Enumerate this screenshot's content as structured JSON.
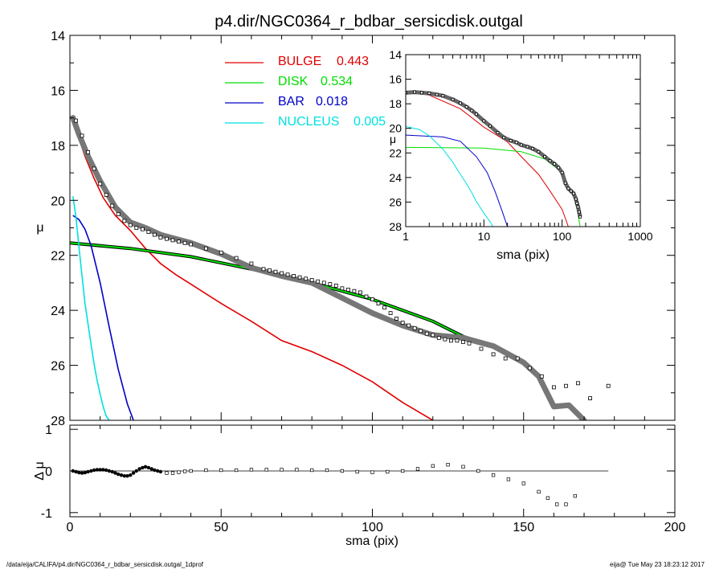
{
  "chart_data": [
    {
      "type": "line",
      "title": "p4.dir/NGC0364_r_bdbar_sersicdisk.outgal",
      "ylabel": "μ",
      "xlim": [
        0,
        200
      ],
      "ylim": [
        28,
        14
      ],
      "y_ticks": [
        "14",
        "16",
        "18",
        "20",
        "22",
        "24",
        "26",
        "28"
      ],
      "legend": [
        {
          "label": "BULGE",
          "value": "0.443",
          "color": "#e00000"
        },
        {
          "label": "DISK",
          "value": "0.534",
          "color": "#00dd00"
        },
        {
          "label": "BAR",
          "value": "0.018",
          "color": "#0000c8"
        },
        {
          "label": "NUCLEUS",
          "value": "0.005",
          "color": "#00e0e0"
        }
      ],
      "series": [
        {
          "name": "BULGE",
          "color": "#e00000",
          "x": [
            1,
            3,
            5,
            8,
            11,
            15,
            20,
            25,
            30,
            35,
            40,
            50,
            60,
            70,
            80,
            90,
            100,
            110,
            120
          ],
          "y": [
            17.0,
            17.75,
            18.4,
            19.2,
            19.9,
            20.55,
            21.1,
            21.75,
            22.3,
            22.7,
            23.05,
            23.75,
            24.4,
            25.1,
            25.5,
            26.0,
            26.6,
            27.35,
            28.0
          ]
        },
        {
          "name": "DISK",
          "color": "#00dd00",
          "x": [
            0,
            20,
            40,
            60,
            80,
            100,
            120,
            130,
            140,
            150,
            155,
            160,
            165,
            170
          ],
          "y": [
            21.55,
            21.75,
            22.05,
            22.5,
            23.0,
            23.6,
            24.4,
            24.95,
            25.3,
            25.9,
            26.4,
            27.5,
            27.45,
            28.0
          ]
        },
        {
          "name": "BAR",
          "color": "#0000c8",
          "x": [
            1,
            3,
            5,
            7,
            10,
            13,
            16,
            19,
            21
          ],
          "y": [
            20.55,
            20.7,
            21.05,
            21.65,
            23.0,
            24.6,
            26.15,
            27.4,
            28.0
          ]
        },
        {
          "name": "NUCLEUS",
          "color": "#00e0e0",
          "x": [
            1,
            2,
            3,
            4,
            5,
            6,
            7,
            8,
            9,
            10,
            11,
            12,
            13
          ],
          "y": [
            19.85,
            20.6,
            21.7,
            22.75,
            23.75,
            24.5,
            25.25,
            25.95,
            26.55,
            27.05,
            27.5,
            27.85,
            28.0
          ]
        },
        {
          "name": "MODEL",
          "color": "#888888",
          "x": [
            1,
            3,
            6,
            10,
            15,
            20,
            25,
            30,
            35,
            40,
            50,
            60,
            70,
            80,
            90,
            100,
            110,
            120,
            130,
            140,
            150,
            155,
            160,
            165,
            170
          ],
          "y": [
            17.0,
            17.6,
            18.4,
            19.3,
            20.25,
            20.8,
            21.0,
            21.25,
            21.4,
            21.55,
            21.95,
            22.45,
            22.75,
            23.0,
            23.55,
            24.1,
            24.55,
            24.9,
            25.0,
            25.3,
            25.9,
            26.4,
            27.5,
            27.45,
            28.0
          ]
        }
      ],
      "observed": {
        "x": [
          2,
          4,
          6,
          8,
          10,
          12,
          14,
          16,
          18,
          20,
          22,
          24,
          26,
          28,
          30,
          32,
          34,
          36,
          38,
          40,
          45,
          50,
          55,
          60,
          64,
          66,
          68,
          70,
          72,
          74,
          76,
          78,
          80,
          82,
          84,
          86,
          88,
          90,
          92,
          94,
          96,
          98,
          100,
          102,
          104,
          106,
          108,
          110,
          112,
          114,
          116,
          118,
          120,
          122,
          124,
          126,
          128,
          130,
          132,
          136,
          140,
          144,
          148,
          152,
          156,
          160,
          164,
          168,
          172,
          178
        ],
        "y": [
          17.1,
          17.65,
          18.25,
          18.85,
          19.4,
          19.8,
          20.2,
          20.5,
          20.75,
          20.9,
          21.0,
          21.05,
          21.15,
          21.25,
          21.35,
          21.4,
          21.45,
          21.5,
          21.55,
          21.6,
          21.75,
          21.9,
          22.1,
          22.3,
          22.5,
          22.55,
          22.6,
          22.65,
          22.7,
          22.75,
          22.8,
          22.85,
          22.9,
          22.95,
          23.0,
          23.05,
          23.1,
          23.2,
          23.25,
          23.3,
          23.35,
          23.5,
          23.6,
          23.75,
          23.9,
          24.1,
          24.3,
          24.45,
          24.55,
          24.65,
          24.75,
          24.85,
          24.9,
          25.0,
          25.05,
          25.1,
          25.1,
          25.15,
          25.2,
          25.4,
          25.6,
          25.75,
          25.75,
          26.1,
          26.4,
          26.8,
          26.75,
          26.65,
          27.2,
          26.75
        ]
      }
    },
    {
      "type": "line",
      "ylabel": "μ",
      "xlabel": "sma (pix)",
      "xscale": "log",
      "xlim": [
        1,
        1000
      ],
      "ylim": [
        28,
        14
      ],
      "x_ticks": [
        "1",
        "10",
        "100",
        "1000"
      ],
      "y_ticks": [
        "14",
        "16",
        "18",
        "20",
        "22",
        "24",
        "26",
        "28"
      ],
      "series": [
        {
          "name": "BULGE",
          "color": "#e00000",
          "x": [
            1,
            2,
            5,
            10,
            20,
            30,
            50,
            70,
            100,
            120
          ],
          "y": [
            17.0,
            17.3,
            18.4,
            19.9,
            21.1,
            22.3,
            23.75,
            25.1,
            26.6,
            28.0
          ]
        },
        {
          "name": "DISK",
          "color": "#00dd00",
          "x": [
            1,
            10,
            30,
            60,
            100,
            150,
            170
          ],
          "y": [
            21.55,
            21.6,
            21.9,
            22.5,
            23.6,
            25.9,
            28.0
          ]
        },
        {
          "name": "BAR",
          "color": "#0000c8",
          "x": [
            1,
            3,
            5,
            8,
            11,
            14,
            17,
            20
          ],
          "y": [
            20.55,
            20.7,
            21.05,
            22.3,
            23.6,
            25.2,
            26.7,
            28.0
          ]
        },
        {
          "name": "NUCLEUS",
          "color": "#00e0e0",
          "x": [
            1,
            1.5,
            2,
            3,
            4,
            5,
            6,
            7,
            8,
            10,
            12,
            13
          ],
          "y": [
            19.85,
            20.1,
            20.6,
            21.7,
            22.75,
            23.75,
            24.5,
            25.25,
            25.95,
            26.9,
            27.6,
            28.0
          ]
        }
      ],
      "observed": {
        "x": [
          1,
          1.3,
          1.6,
          2,
          2.5,
          3,
          4,
          5,
          6,
          7,
          8,
          10,
          12,
          15,
          18,
          22,
          26,
          30,
          36,
          42,
          50,
          60,
          70,
          80,
          90,
          100,
          110,
          120,
          130,
          140,
          150,
          155,
          160,
          165,
          170
        ],
        "y": [
          17.1,
          17.05,
          17.1,
          17.15,
          17.25,
          17.35,
          17.65,
          17.95,
          18.25,
          18.55,
          18.85,
          19.4,
          19.8,
          20.35,
          20.75,
          21.0,
          21.15,
          21.35,
          21.5,
          21.65,
          21.9,
          22.3,
          22.65,
          22.9,
          23.2,
          23.6,
          24.45,
          24.9,
          25.1,
          25.3,
          25.75,
          26.1,
          26.4,
          26.8,
          27.2
        ]
      }
    },
    {
      "type": "scatter",
      "ylabel": "Δ μ",
      "xlabel": "sma (pix)",
      "xlim": [
        0,
        200
      ],
      "ylim": [
        -1.1,
        1.1
      ],
      "x_ticks": [
        "0",
        "50",
        "100",
        "150",
        "200"
      ],
      "y_ticks": [
        "1",
        "0",
        "-1"
      ],
      "zero_line": {
        "x_start": 0,
        "x_end": 178
      },
      "x": [
        1,
        2,
        3,
        4,
        5,
        6,
        7,
        8,
        9,
        10,
        11,
        12,
        13,
        14,
        15,
        16,
        17,
        18,
        19,
        20,
        21,
        22,
        23,
        24,
        25,
        26,
        27,
        28,
        29,
        30,
        32,
        34,
        36,
        38,
        40,
        45,
        50,
        55,
        60,
        65,
        70,
        75,
        80,
        85,
        90,
        95,
        100,
        105,
        110,
        115,
        120,
        125,
        130,
        135,
        140,
        145,
        150,
        155,
        158,
        161,
        164,
        167
      ],
      "y": [
        0.0,
        -0.02,
        -0.04,
        -0.05,
        -0.04,
        -0.02,
        0.0,
        0.02,
        0.03,
        0.03,
        0.03,
        0.02,
        0.0,
        -0.02,
        -0.05,
        -0.08,
        -0.1,
        -0.12,
        -0.12,
        -0.1,
        -0.05,
        0.0,
        0.05,
        0.08,
        0.1,
        0.08,
        0.05,
        0.02,
        0.0,
        -0.02,
        -0.05,
        -0.05,
        -0.03,
        -0.01,
        0.0,
        0.02,
        0.02,
        0.02,
        0.03,
        0.03,
        0.03,
        0.03,
        0.02,
        0.02,
        0.0,
        -0.02,
        -0.03,
        -0.02,
        0.0,
        0.05,
        0.12,
        0.15,
        0.1,
        0.0,
        -0.1,
        -0.2,
        -0.3,
        -0.5,
        -0.65,
        -0.8,
        -0.8,
        -0.6
      ]
    }
  ],
  "footer": {
    "path": "/data/eija/CALIFA/p4.dir/NGC0364_r_bdbar_sersicdisk.outgal_1dprof",
    "stamp": "eija@  Tue May 23 18:23:12 2017"
  }
}
